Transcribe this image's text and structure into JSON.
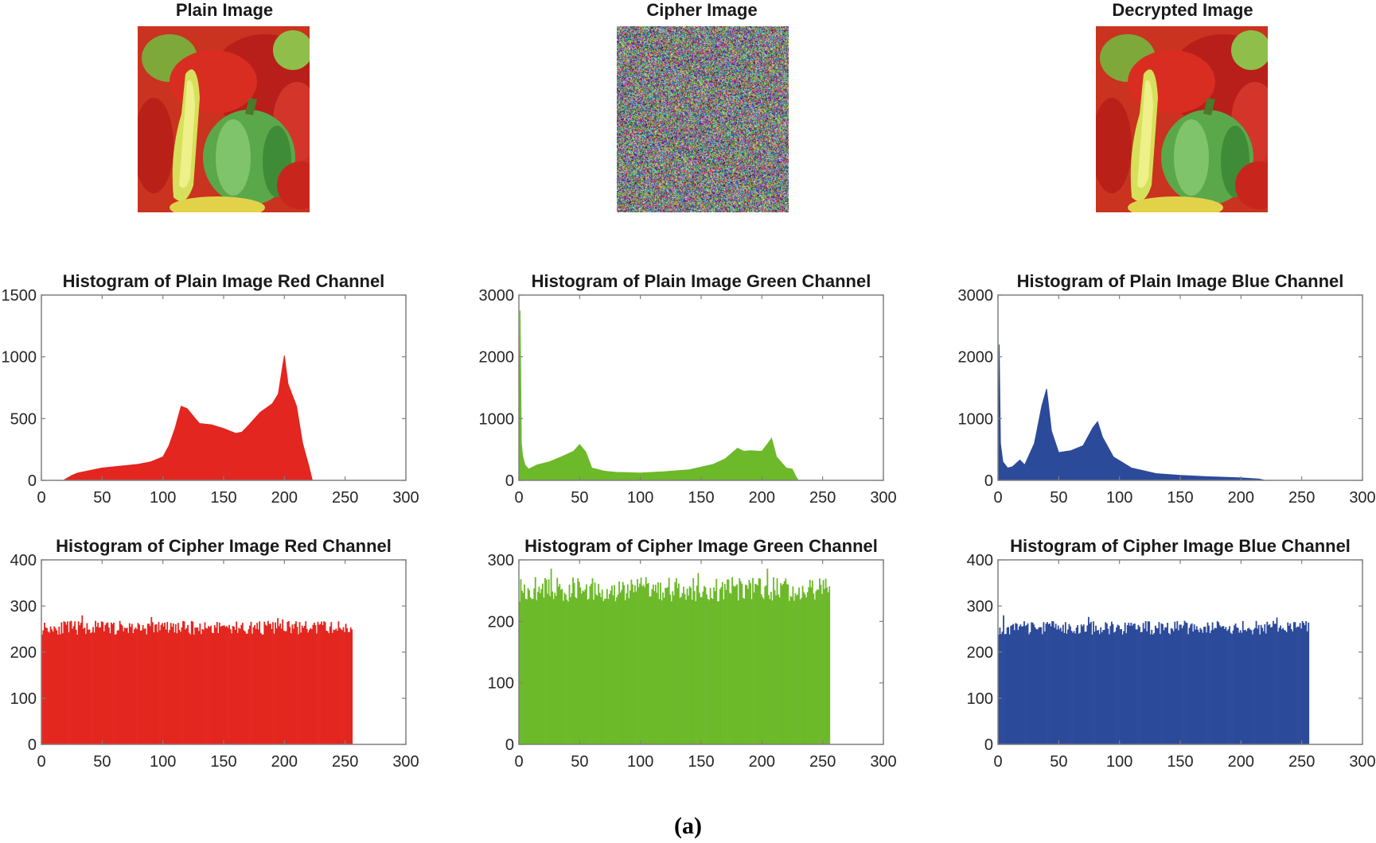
{
  "images": {
    "plain": {
      "title": "Plain Image"
    },
    "cipher": {
      "title": "Cipher Image"
    },
    "decrypted": {
      "title": "Decrypted Image"
    }
  },
  "figure_label": "(a)",
  "colors": {
    "red": "#e3261f",
    "green": "#6cb92a",
    "blue": "#2c4a9a",
    "axis": "#808080",
    "text": "#262626"
  },
  "chart_data": [
    {
      "id": "plain-red",
      "type": "area",
      "title": "Histogram of Plain Image Red Channel",
      "color": "#e3261f",
      "xlim": [
        0,
        300
      ],
      "ylim": [
        0,
        1500
      ],
      "xticks": [
        0,
        50,
        100,
        150,
        200,
        250,
        300
      ],
      "yticks": [
        0,
        500,
        1000,
        1500
      ],
      "x": [
        0,
        18,
        25,
        30,
        40,
        50,
        60,
        70,
        80,
        90,
        100,
        105,
        110,
        115,
        120,
        125,
        130,
        140,
        150,
        160,
        165,
        170,
        180,
        190,
        195,
        200,
        203,
        210,
        215,
        220,
        223,
        224
      ],
      "y": [
        0,
        0,
        40,
        60,
        80,
        100,
        110,
        120,
        130,
        150,
        190,
        280,
        420,
        600,
        580,
        520,
        460,
        450,
        420,
        380,
        390,
        440,
        550,
        620,
        700,
        1010,
        780,
        600,
        300,
        120,
        0,
        0
      ]
    },
    {
      "id": "plain-green",
      "type": "area",
      "title": "Histogram of Plain Image Green Channel",
      "color": "#6cb92a",
      "xlim": [
        0,
        300
      ],
      "ylim": [
        0,
        3000
      ],
      "xticks": [
        0,
        50,
        100,
        150,
        200,
        250,
        300
      ],
      "yticks": [
        0,
        1000,
        2000,
        3000
      ],
      "x": [
        0,
        1,
        2,
        3,
        5,
        8,
        15,
        25,
        35,
        45,
        50,
        55,
        60,
        70,
        80,
        100,
        120,
        140,
        160,
        170,
        180,
        185,
        190,
        200,
        205,
        208,
        212,
        220,
        225,
        228,
        230
      ],
      "y": [
        0,
        2750,
        600,
        400,
        250,
        180,
        250,
        300,
        380,
        470,
        580,
        460,
        200,
        150,
        130,
        120,
        140,
        170,
        260,
        350,
        520,
        470,
        480,
        470,
        600,
        680,
        380,
        200,
        180,
        60,
        0
      ]
    },
    {
      "id": "plain-blue",
      "type": "area",
      "title": "Histogram of Plain Image Blue Channel",
      "color": "#2c4a9a",
      "xlim": [
        0,
        300
      ],
      "ylim": [
        0,
        3000
      ],
      "xticks": [
        0,
        50,
        100,
        150,
        200,
        250,
        300
      ],
      "yticks": [
        0,
        1000,
        2000,
        3000
      ],
      "x": [
        0,
        1,
        2,
        4,
        8,
        12,
        18,
        22,
        30,
        36,
        40,
        44,
        50,
        60,
        70,
        78,
        82,
        86,
        95,
        110,
        130,
        150,
        170,
        200,
        215,
        220
      ],
      "y": [
        0,
        2200,
        600,
        300,
        200,
        220,
        330,
        250,
        600,
        1200,
        1480,
        800,
        450,
        480,
        560,
        850,
        950,
        700,
        380,
        200,
        110,
        80,
        60,
        40,
        20,
        0
      ]
    },
    {
      "id": "cipher-red",
      "type": "bar",
      "title": "Histogram of Cipher Image Red Channel",
      "color": "#e3261f",
      "xlim": [
        0,
        300
      ],
      "ylim": [
        0,
        400
      ],
      "xticks": [
        0,
        50,
        100,
        150,
        200,
        250,
        300
      ],
      "yticks": [
        0,
        100,
        200,
        300,
        400
      ],
      "bins": 256,
      "mean": 256,
      "spread": 30,
      "seed": 11
    },
    {
      "id": "cipher-green",
      "type": "bar",
      "title": "Histogram of Cipher Image Green Channel",
      "color": "#6cb92a",
      "xlim": [
        0,
        300
      ],
      "ylim": [
        0,
        300
      ],
      "xticks": [
        0,
        50,
        100,
        150,
        200,
        250,
        300
      ],
      "yticks": [
        0,
        100,
        200,
        300
      ],
      "bins": 256,
      "mean": 256,
      "spread": 40,
      "seed": 29
    },
    {
      "id": "cipher-blue",
      "type": "bar",
      "title": "Histogram of Cipher Image Blue Channel",
      "color": "#2c4a9a",
      "xlim": [
        0,
        300
      ],
      "ylim": [
        0,
        400
      ],
      "xticks": [
        0,
        50,
        100,
        150,
        200,
        250,
        300
      ],
      "yticks": [
        0,
        100,
        200,
        300,
        400
      ],
      "bins": 256,
      "mean": 256,
      "spread": 30,
      "seed": 47
    }
  ]
}
